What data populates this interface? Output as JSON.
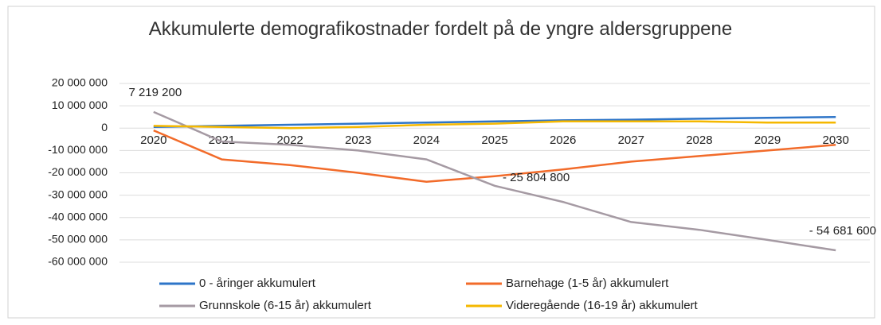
{
  "chart_data": {
    "type": "line",
    "title": "Akkumulerte demografikostnader fordelt på de yngre aldersgruppene",
    "categories": [
      "2020",
      "2021",
      "2022",
      "2023",
      "2024",
      "2025",
      "2026",
      "2027",
      "2028",
      "2029",
      "2030"
    ],
    "series": [
      {
        "name": "0 - åringer akkumulert",
        "color": "#2e75c8",
        "values": [
          500000,
          1000000,
          1500000,
          2000000,
          2500000,
          3000000,
          3500000,
          3800000,
          4200000,
          4600000,
          5000000
        ]
      },
      {
        "name": "Barnehage (1-5 år) akkumulert",
        "color": "#f26b2a",
        "values": [
          -1000000,
          -14000000,
          -16500000,
          -20000000,
          -24000000,
          -21500000,
          -18500000,
          -15000000,
          -12500000,
          -10000000,
          -7500000
        ]
      },
      {
        "name": "Grunnskole (6-15 år) akkumulert",
        "color": "#a59aa3",
        "values": [
          7219200,
          -6000000,
          -7500000,
          -10000000,
          -14000000,
          -25804800,
          -33000000,
          -42000000,
          -45500000,
          -50000000,
          -54681600
        ],
        "value_labels": [
          "7 219 200",
          null,
          null,
          null,
          null,
          "- 25 804 800",
          null,
          null,
          null,
          null,
          "- 54 681 600"
        ]
      },
      {
        "name": "Videregående (16-19 år) akkumulert",
        "color": "#f5b800",
        "values": [
          1000000,
          500000,
          0,
          500000,
          1500000,
          2000000,
          3000000,
          3000000,
          3000000,
          2500000,
          2500000
        ]
      }
    ],
    "ylim": [
      -60000000,
      20000000
    ],
    "yticks": [
      {
        "value": -60000000,
        "label": "-60 000 000"
      },
      {
        "value": -50000000,
        "label": "-50 000 000"
      },
      {
        "value": -40000000,
        "label": "-40 000 000"
      },
      {
        "value": -30000000,
        "label": "-30 000 000"
      },
      {
        "value": -20000000,
        "label": "-20 000 000"
      },
      {
        "value": -10000000,
        "label": "-10 000 000"
      },
      0,
      {
        "value": 10000000,
        "label": "10 000 000"
      },
      {
        "value": 20000000,
        "label": "20 000 000"
      }
    ],
    "grid": true,
    "legend": "bottom"
  }
}
